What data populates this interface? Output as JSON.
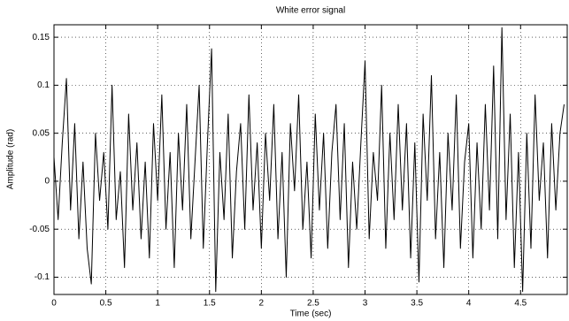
{
  "chart_data": {
    "type": "line",
    "title": "White error signal",
    "xlabel": "Time (sec)",
    "ylabel": "Amplitude (rad)",
    "x": [
      0,
      0.04,
      0.08,
      0.12,
      0.16,
      0.2,
      0.24,
      0.28,
      0.32,
      0.36,
      0.4,
      0.44,
      0.48,
      0.52,
      0.56,
      0.6,
      0.64,
      0.68,
      0.72,
      0.76,
      0.8,
      0.84,
      0.88,
      0.92,
      0.96,
      1.0,
      1.04,
      1.08,
      1.12,
      1.16,
      1.2,
      1.24,
      1.28,
      1.32,
      1.36,
      1.4,
      1.44,
      1.48,
      1.52,
      1.56,
      1.6,
      1.64,
      1.68,
      1.72,
      1.76,
      1.8,
      1.84,
      1.88,
      1.92,
      1.96,
      2.0,
      2.04,
      2.08,
      2.12,
      2.16,
      2.2,
      2.24,
      2.28,
      2.32,
      2.36,
      2.4,
      2.44,
      2.48,
      2.52,
      2.56,
      2.6,
      2.64,
      2.68,
      2.72,
      2.76,
      2.8,
      2.84,
      2.88,
      2.92,
      2.96,
      3.0,
      3.04,
      3.08,
      3.12,
      3.16,
      3.2,
      3.24,
      3.28,
      3.32,
      3.36,
      3.4,
      3.44,
      3.48,
      3.52,
      3.56,
      3.6,
      3.64,
      3.68,
      3.72,
      3.76,
      3.8,
      3.84,
      3.88,
      3.92,
      3.96,
      4.0,
      4.04,
      4.08,
      4.12,
      4.16,
      4.2,
      4.24,
      4.28,
      4.32,
      4.36,
      4.4,
      4.44,
      4.48,
      4.52,
      4.56,
      4.6,
      4.64,
      4.68,
      4.72,
      4.76,
      4.8,
      4.84,
      4.88,
      4.92
    ],
    "values": [
      0.025,
      -0.04,
      0.04,
      0.107,
      -0.03,
      0.06,
      -0.06,
      0.02,
      -0.07,
      -0.107,
      0.05,
      -0.02,
      0.03,
      -0.05,
      0.1,
      -0.04,
      0.01,
      -0.09,
      0.07,
      -0.03,
      0.04,
      -0.06,
      0.02,
      -0.08,
      0.06,
      -0.02,
      0.09,
      -0.05,
      0.03,
      -0.09,
      0.05,
      -0.03,
      0.08,
      -0.06,
      0.02,
      0.1,
      -0.07,
      0.04,
      0.138,
      -0.115,
      0.03,
      -0.04,
      0.07,
      -0.08,
      0.01,
      0.06,
      -0.05,
      0.09,
      -0.03,
      0.04,
      -0.07,
      0.05,
      -0.02,
      0.08,
      -0.06,
      0.03,
      -0.1,
      0.06,
      -0.01,
      0.09,
      -0.05,
      0.02,
      -0.08,
      0.07,
      -0.03,
      0.05,
      -0.07,
      0.03,
      0.08,
      -0.04,
      0.06,
      -0.09,
      0.02,
      -0.05,
      0.04,
      0.125,
      -0.06,
      0.03,
      -0.02,
      0.1,
      -0.07,
      0.05,
      -0.04,
      0.08,
      -0.03,
      0.06,
      -0.08,
      0.04,
      -0.105,
      0.07,
      -0.02,
      0.11,
      -0.06,
      0.03,
      -0.09,
      0.05,
      -0.03,
      0.09,
      -0.07,
      0.02,
      0.06,
      -0.08,
      0.04,
      -0.05,
      0.08,
      -0.03,
      0.12,
      -0.06,
      0.16,
      -0.04,
      0.07,
      -0.09,
      0.03,
      -0.115,
      0.05,
      -0.07,
      0.09,
      -0.02,
      0.04,
      -0.08,
      0.06,
      -0.03,
      0.05,
      0.08
    ],
    "color": "#000000",
    "xlim": [
      0,
      4.95
    ],
    "xticks": [
      0,
      0.5,
      1,
      1.5,
      2,
      2.5,
      3,
      3.5,
      4,
      4.5
    ],
    "ylim": [
      -0.118,
      0.163
    ],
    "yticks": [
      -0.1,
      -0.05,
      0,
      0.05,
      0.1,
      0.15
    ],
    "grid": true
  }
}
